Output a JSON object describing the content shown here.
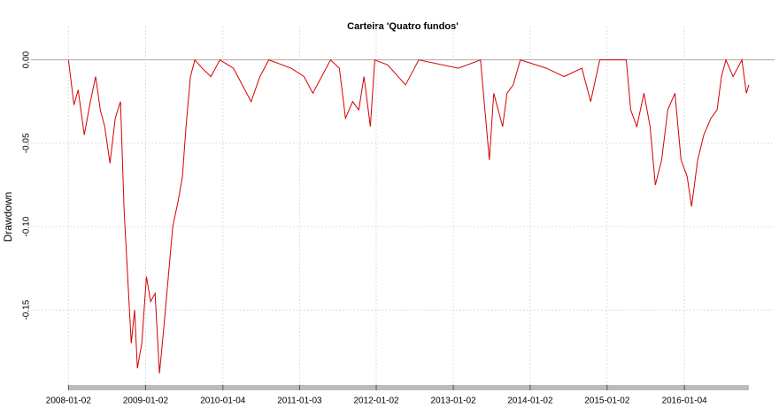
{
  "chart_data": {
    "type": "line",
    "title": "Carteira 'Quatro fundos'",
    "y_label": "Drawdown",
    "color": "#d40000",
    "grid": true,
    "x": [
      "2008-01-02",
      "2008-01-28",
      "2008-02-17",
      "2008-03-17",
      "2008-04-15",
      "2008-05-10",
      "2008-06-01",
      "2008-06-22",
      "2008-07-17",
      "2008-08-11",
      "2008-09-05",
      "2008-09-22",
      "2008-10-09",
      "2008-10-26",
      "2008-11-11",
      "2008-11-24",
      "2008-12-15",
      "2009-01-06",
      "2009-01-26",
      "2009-02-16",
      "2009-03-09",
      "2009-03-30",
      "2009-04-20",
      "2009-05-11",
      "2009-06-05",
      "2009-06-26",
      "2009-07-13",
      "2009-08-03",
      "2009-08-24",
      "2009-09-27",
      "2009-11-08",
      "2009-12-21",
      "2010-02-23",
      "2010-05-18",
      "2010-06-29",
      "2010-08-10",
      "2010-11-24",
      "2011-01-24",
      "2011-03-07",
      "2011-04-18",
      "2011-05-30",
      "2011-07-11",
      "2011-08-09",
      "2011-09-12",
      "2011-10-11",
      "2011-11-05",
      "2011-12-05",
      "2011-12-26",
      "2012-02-25",
      "2012-05-20",
      "2012-07-22",
      "2013-01-26",
      "2013-05-11",
      "2013-06-01",
      "2013-06-22",
      "2013-07-13",
      "2013-08-03",
      "2013-08-24",
      "2013-09-14",
      "2013-10-13",
      "2013-11-16",
      "2014-03-20",
      "2014-06-12",
      "2014-09-04",
      "2014-10-16",
      "2014-11-28",
      "2015-04-03",
      "2015-04-24",
      "2015-05-23",
      "2015-06-26",
      "2015-07-25",
      "2015-08-19",
      "2015-09-18",
      "2015-10-17",
      "2015-11-20",
      "2015-12-19",
      "2016-01-17",
      "2016-02-07",
      "2016-03-07",
      "2016-04-05",
      "2016-05-09",
      "2016-06-07",
      "2016-06-28",
      "2016-07-19",
      "2016-08-22",
      "2016-10-03",
      "2016-10-24",
      "2016-11-05"
    ],
    "values": [
      0,
      -0.027,
      -0.018,
      -0.045,
      -0.025,
      -0.01,
      -0.03,
      -0.04,
      -0.062,
      -0.035,
      -0.025,
      -0.09,
      -0.13,
      -0.17,
      -0.15,
      -0.185,
      -0.17,
      -0.13,
      -0.145,
      -0.14,
      -0.188,
      -0.16,
      -0.13,
      -0.1,
      -0.085,
      -0.07,
      -0.04,
      -0.01,
      0,
      -0.005,
      -0.01,
      0,
      -0.005,
      -0.025,
      -0.01,
      0,
      -0.005,
      -0.01,
      -0.02,
      -0.01,
      0,
      -0.005,
      -0.035,
      -0.025,
      -0.03,
      -0.01,
      -0.04,
      0,
      -0.003,
      -0.015,
      0,
      -0.005,
      0,
      -0.03,
      -0.06,
      -0.02,
      -0.03,
      -0.04,
      -0.02,
      -0.015,
      0,
      -0.005,
      -0.01,
      -0.005,
      -0.025,
      0,
      0,
      -0.03,
      -0.04,
      -0.02,
      -0.04,
      -0.075,
      -0.06,
      -0.03,
      -0.02,
      -0.06,
      -0.07,
      -0.088,
      -0.06,
      -0.045,
      -0.035,
      -0.03,
      -0.01,
      0,
      -0.01,
      0,
      -0.02,
      -0.015
    ],
    "xlim": [
      "2007-07-08",
      "2017-03-07"
    ],
    "xticks": [
      "2008-01-02",
      "2009-01-02",
      "2010-01-04",
      "2011-01-03",
      "2012-01-02",
      "2013-01-02",
      "2014-01-02",
      "2015-01-02",
      "2016-01-04"
    ],
    "ylim": [
      -0.195,
      0.02
    ],
    "yticks": [
      {
        "value": 0,
        "label": "0.00"
      },
      -0.05,
      {
        "value": -0.1,
        "label": "-0.10"
      },
      -0.15
    ]
  }
}
